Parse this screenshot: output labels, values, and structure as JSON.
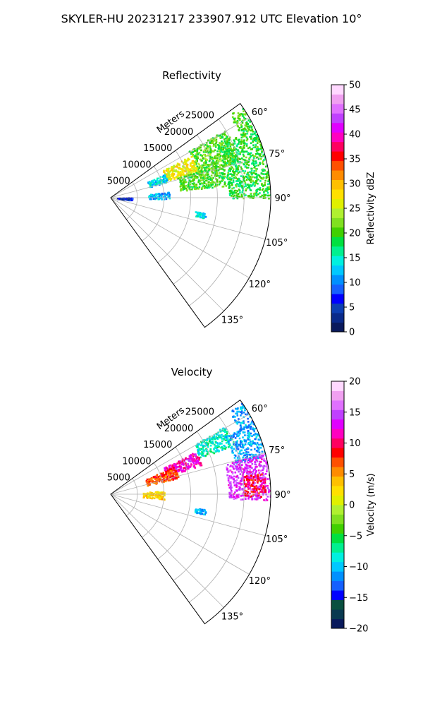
{
  "figure": {
    "suptitle": "SKYLER-HU  20231217  233907.912 UTC Elevation 10°"
  },
  "chart_data": [
    {
      "type": "heatmap",
      "projection": "polar-sector",
      "title": "Reflectivity",
      "radial_label": "Meters",
      "radial_ticks": [
        5000,
        10000,
        15000,
        20000,
        25000
      ],
      "radial_tick_labels": [
        "5000",
        "10000",
        "15000",
        "20000",
        "25000"
      ],
      "rlim": [
        0,
        30000
      ],
      "theta_ticks": [
        60,
        75,
        90,
        105,
        120,
        135
      ],
      "theta_tick_labels": [
        "60°",
        "75°",
        "90°",
        "105°",
        "120°",
        "135°"
      ],
      "theta_range": [
        54,
        144
      ],
      "grid": true,
      "colorbar": {
        "label": "Reflectivity dBZ",
        "range": [
          0,
          50
        ],
        "ticks": [
          0,
          5,
          10,
          15,
          20,
          25,
          30,
          35,
          40,
          45,
          50
        ],
        "tick_labels": [
          "0",
          "5",
          "10",
          "15",
          "20",
          "25",
          "30",
          "35",
          "40",
          "45",
          "50"
        ],
        "colors": [
          "#0a1a5c",
          "#0a2a8a",
          "#0d3fb3",
          "#0000ff",
          "#1560ff",
          "#0090ff",
          "#00c8ff",
          "#00f0e0",
          "#00f090",
          "#00e040",
          "#40d000",
          "#80e020",
          "#b0f030",
          "#e0f000",
          "#ffe000",
          "#ffc000",
          "#ff8c00",
          "#ff5000",
          "#ff0000",
          "#ff0060",
          "#ff00c0",
          "#e000ff",
          "#c040ff",
          "#e070ff",
          "#f0a0f0",
          "#ffd8ff"
        ]
      },
      "echoes": [
        {
          "theta": [
            55,
            64
          ],
          "r": [
            27000,
            30000
          ],
          "value": 20
        },
        {
          "theta": [
            59,
            74
          ],
          "r": [
            17000,
            25000
          ],
          "value": 21
        },
        {
          "theta": [
            62,
            73
          ],
          "r": [
            11000,
            17000
          ],
          "value": 27
        },
        {
          "theta": [
            66,
            74
          ],
          "r": [
            7500,
            11000
          ],
          "value": 13
        },
        {
          "theta": [
            64,
            90
          ],
          "r": [
            22000,
            30000
          ],
          "value": 19
        },
        {
          "theta": [
            73,
            84
          ],
          "r": [
            13000,
            22000
          ],
          "value": 20
        },
        {
          "theta": [
            99,
            102
          ],
          "r": [
            16000,
            18000
          ],
          "value": 14
        },
        {
          "theta": [
            84,
            91
          ],
          "r": [
            7000,
            11000
          ],
          "value": 12
        },
        {
          "theta": [
            88,
            96
          ],
          "r": [
            1000,
            4000
          ],
          "value": 5
        }
      ]
    },
    {
      "type": "heatmap",
      "projection": "polar-sector",
      "title": "Velocity",
      "radial_label": "Meters",
      "radial_ticks": [
        5000,
        10000,
        15000,
        20000,
        25000
      ],
      "radial_tick_labels": [
        "5000",
        "10000",
        "15000",
        "20000",
        "25000"
      ],
      "rlim": [
        0,
        30000
      ],
      "theta_ticks": [
        60,
        75,
        90,
        105,
        120,
        135
      ],
      "theta_tick_labels": [
        "60°",
        "75°",
        "90°",
        "105°",
        "120°",
        "135°"
      ],
      "theta_range": [
        54,
        144
      ],
      "grid": true,
      "colorbar": {
        "label": "Velocity (m/s)",
        "range": [
          -20,
          20
        ],
        "ticks": [
          -20,
          -15,
          -10,
          -5,
          0,
          5,
          10,
          15,
          20
        ],
        "tick_labels": [
          "−20",
          "−15",
          "−10",
          "−5",
          "0",
          "5",
          "10",
          "15",
          "20"
        ],
        "colors": [
          "#0a1a5c",
          "#0a3a50",
          "#0a5040",
          "#0000ff",
          "#1560ff",
          "#0090ff",
          "#00c8ff",
          "#00f0e0",
          "#00f090",
          "#00e040",
          "#40d000",
          "#80e020",
          "#b0f030",
          "#e0f000",
          "#ffe000",
          "#ffc000",
          "#ff8c00",
          "#ff5000",
          "#ff0000",
          "#ff0060",
          "#ff00c0",
          "#e000ff",
          "#c040ff",
          "#e070ff",
          "#f0a0f0",
          "#ffd8ff"
        ]
      },
      "echoes": [
        {
          "theta": [
            55,
            64
          ],
          "r": [
            27000,
            30000
          ],
          "value": -11
        },
        {
          "theta": [
            59,
            68
          ],
          "r": [
            18000,
            25000
          ],
          "value": -8
        },
        {
          "theta": [
            63,
            72
          ],
          "r": [
            11000,
            18000
          ],
          "value": 12
        },
        {
          "theta": [
            66,
            76
          ],
          "r": [
            7000,
            13000
          ],
          "value": 7
        },
        {
          "theta": [
            63,
            76
          ],
          "r": [
            24000,
            30000
          ],
          "value": -11
        },
        {
          "theta": [
            75,
            92
          ],
          "r": [
            22000,
            30000
          ],
          "value": 14
        },
        {
          "theta": [
            82,
            91
          ],
          "r": [
            25000,
            29000
          ],
          "value": 9
        },
        {
          "theta": [
            99,
            102
          ],
          "r": [
            16000,
            18000
          ],
          "value": -11
        },
        {
          "theta": [
            86,
            95
          ],
          "r": [
            6000,
            10000
          ],
          "value": 3
        }
      ]
    }
  ]
}
